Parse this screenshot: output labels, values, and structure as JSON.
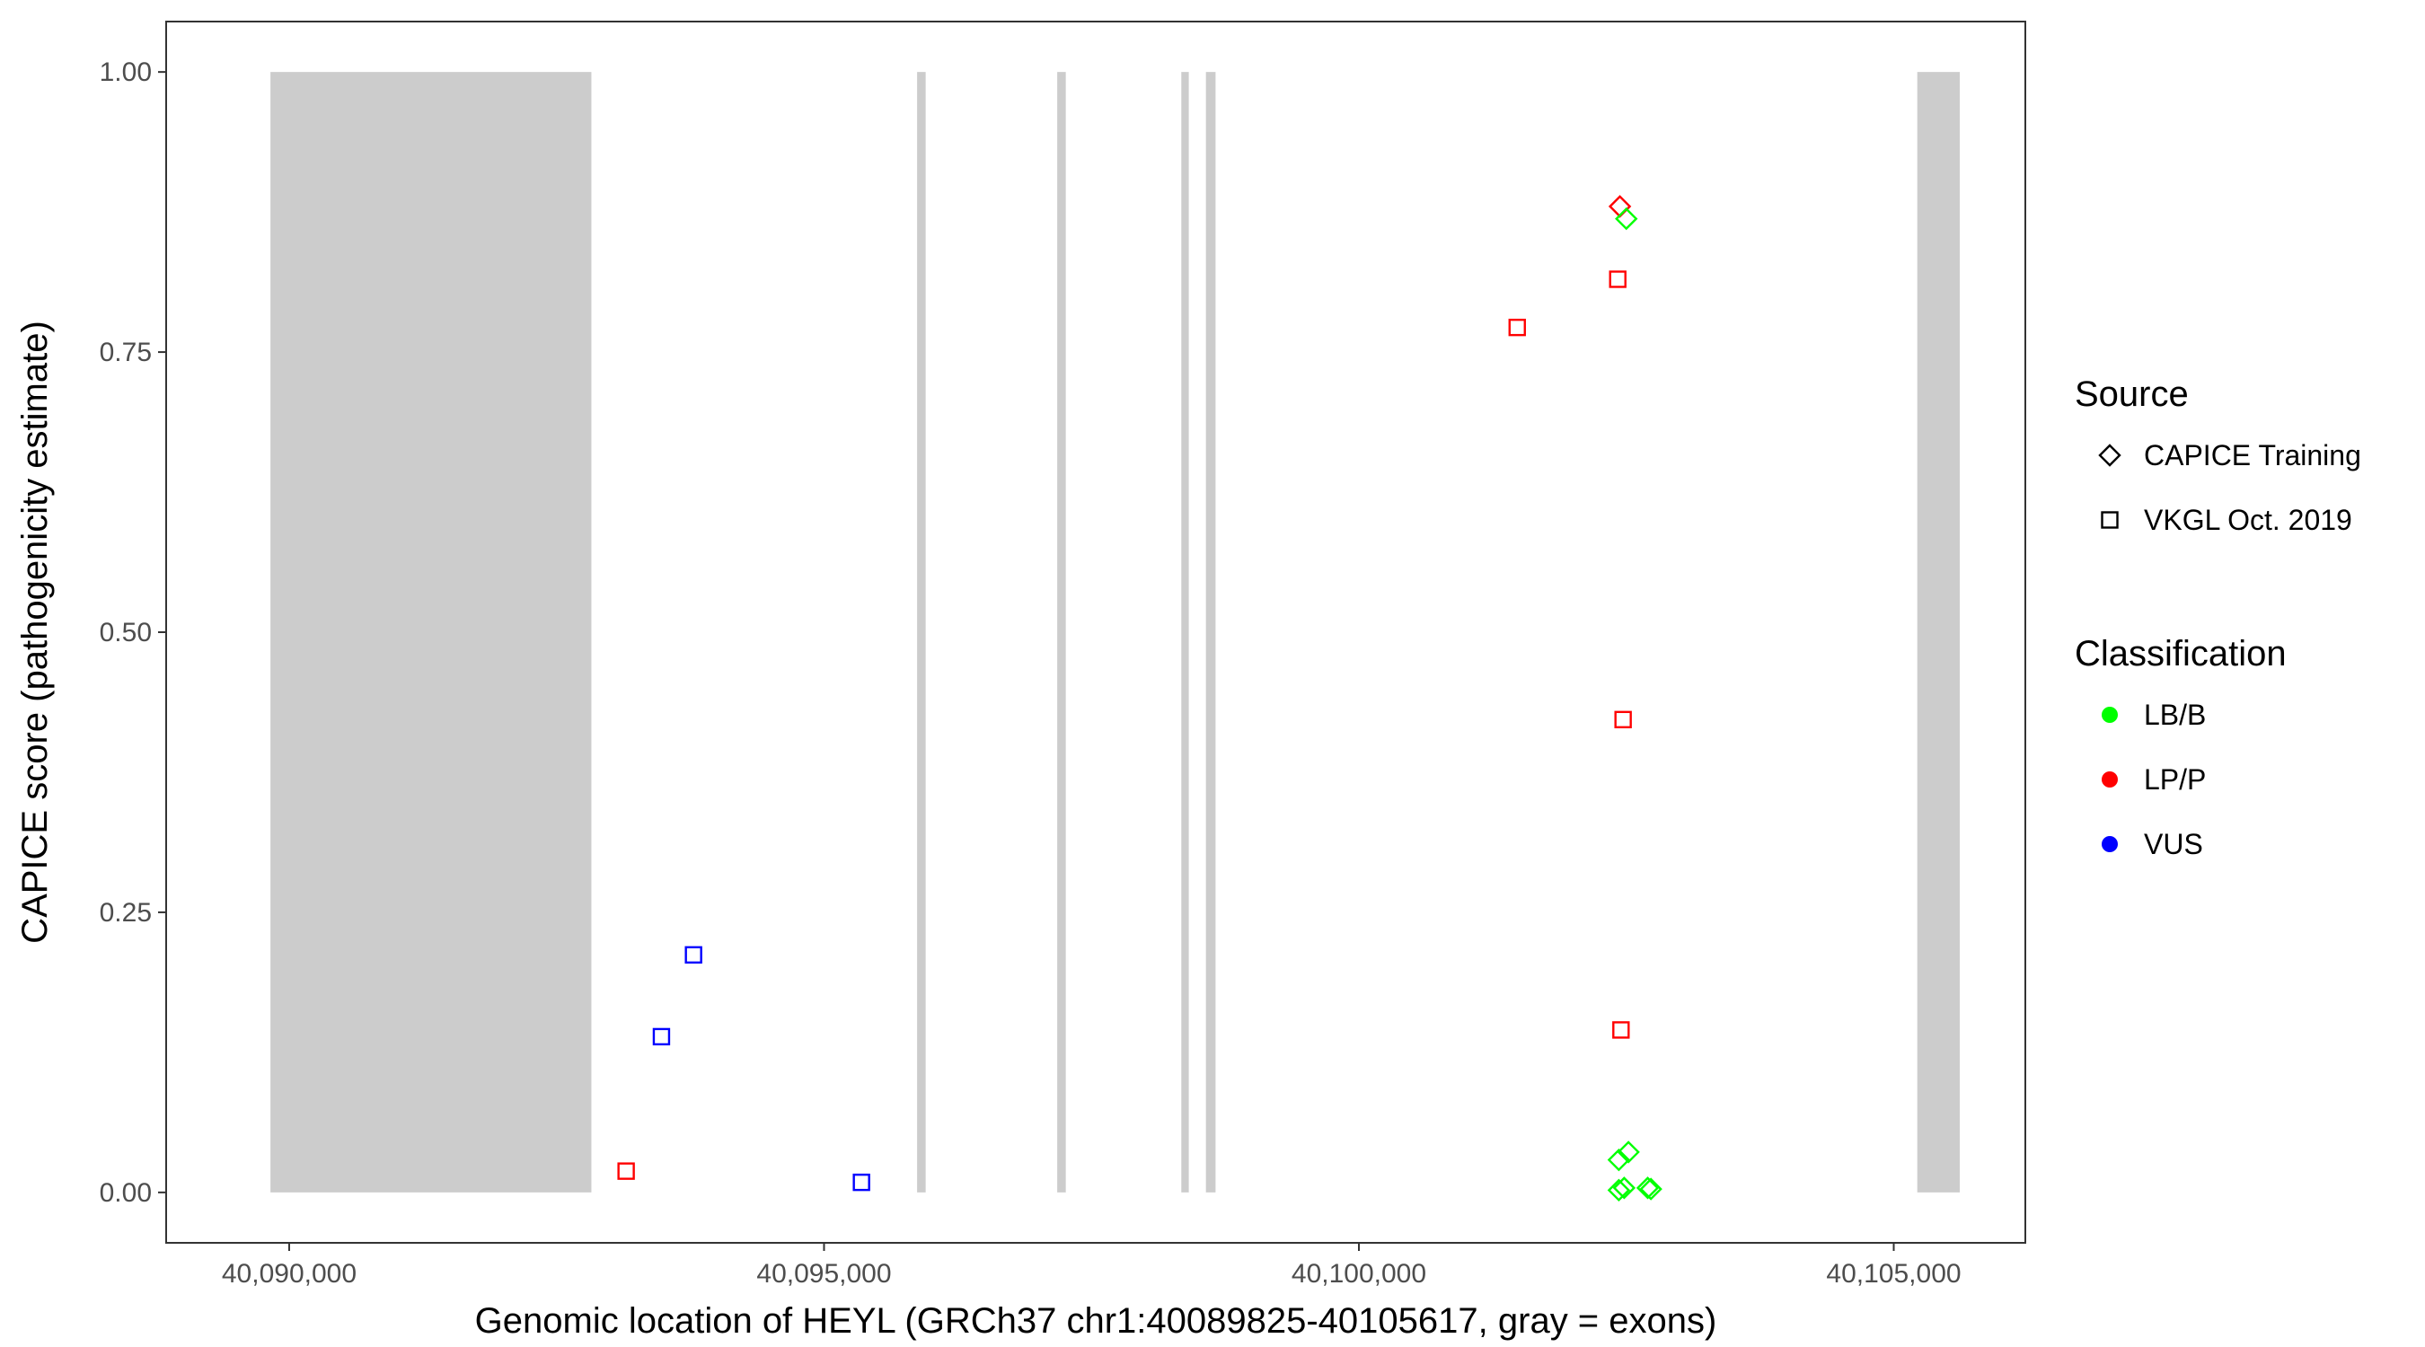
{
  "chart_data": {
    "type": "scatter",
    "title": "",
    "xlabel": "Genomic location of HEYL (GRCh37 chr1:40089825-40105617, gray = exons)",
    "ylabel": "CAPICE score (pathogenicity estimate)",
    "xlim": [
      40088850,
      40106230
    ],
    "ylim": [
      -0.045,
      1.045
    ],
    "x_ticks": [
      40090000,
      40095000,
      40100000,
      40105000
    ],
    "x_tick_labels": [
      "40,090,000",
      "40,095,000",
      "40,100,000",
      "40,105,000"
    ],
    "y_ticks": [
      0.0,
      0.25,
      0.5,
      0.75,
      1.0
    ],
    "y_tick_labels": [
      "0.00",
      "0.25",
      "0.50",
      "0.75",
      "1.00"
    ],
    "grid": false,
    "exons": [
      {
        "start": 40089825,
        "end": 40092825
      },
      {
        "start": 40095870,
        "end": 40095950
      },
      {
        "start": 40097180,
        "end": 40097260
      },
      {
        "start": 40098340,
        "end": 40098410
      },
      {
        "start": 40098570,
        "end": 40098660
      },
      {
        "start": 40105220,
        "end": 40105617
      }
    ],
    "exon_color": "#cccccc",
    "legend_position": "right",
    "legend": {
      "source_title": "Source",
      "source_items": [
        {
          "label": "CAPICE Training",
          "shape": "diamond"
        },
        {
          "label": "VKGL Oct. 2019",
          "shape": "square"
        }
      ],
      "classification_title": "Classification",
      "classification_items": [
        {
          "label": "LB/B",
          "color": "#00ff00"
        },
        {
          "label": "LP/P",
          "color": "#ff0000"
        },
        {
          "label": "VUS",
          "color": "#0000ff"
        }
      ]
    },
    "points": [
      {
        "x": 40093150,
        "y": 0.019,
        "source": "VKGL Oct. 2019",
        "classification": "LP/P"
      },
      {
        "x": 40093480,
        "y": 0.139,
        "source": "VKGL Oct. 2019",
        "classification": "VUS"
      },
      {
        "x": 40093780,
        "y": 0.212,
        "source": "VKGL Oct. 2019",
        "classification": "VUS"
      },
      {
        "x": 40095350,
        "y": 0.009,
        "source": "VKGL Oct. 2019",
        "classification": "VUS"
      },
      {
        "x": 40101480,
        "y": 0.772,
        "source": "VKGL Oct. 2019",
        "classification": "LP/P"
      },
      {
        "x": 40102420,
        "y": 0.815,
        "source": "VKGL Oct. 2019",
        "classification": "LP/P"
      },
      {
        "x": 40102470,
        "y": 0.422,
        "source": "VKGL Oct. 2019",
        "classification": "LP/P"
      },
      {
        "x": 40102450,
        "y": 0.145,
        "source": "VKGL Oct. 2019",
        "classification": "LP/P"
      },
      {
        "x": 40102440,
        "y": 0.88,
        "source": "CAPICE Training",
        "classification": "LP/P"
      },
      {
        "x": 40102500,
        "y": 0.869,
        "source": "CAPICE Training",
        "classification": "LB/B"
      },
      {
        "x": 40102430,
        "y": 0.029,
        "source": "CAPICE Training",
        "classification": "LB/B"
      },
      {
        "x": 40102520,
        "y": 0.036,
        "source": "CAPICE Training",
        "classification": "LB/B"
      },
      {
        "x": 40102430,
        "y": 0.002,
        "source": "CAPICE Training",
        "classification": "LB/B"
      },
      {
        "x": 40102480,
        "y": 0.004,
        "source": "CAPICE Training",
        "classification": "LB/B"
      },
      {
        "x": 40102700,
        "y": 0.004,
        "source": "CAPICE Training",
        "classification": "LB/B"
      },
      {
        "x": 40102730,
        "y": 0.003,
        "source": "CAPICE Training",
        "classification": "LB/B"
      }
    ]
  }
}
